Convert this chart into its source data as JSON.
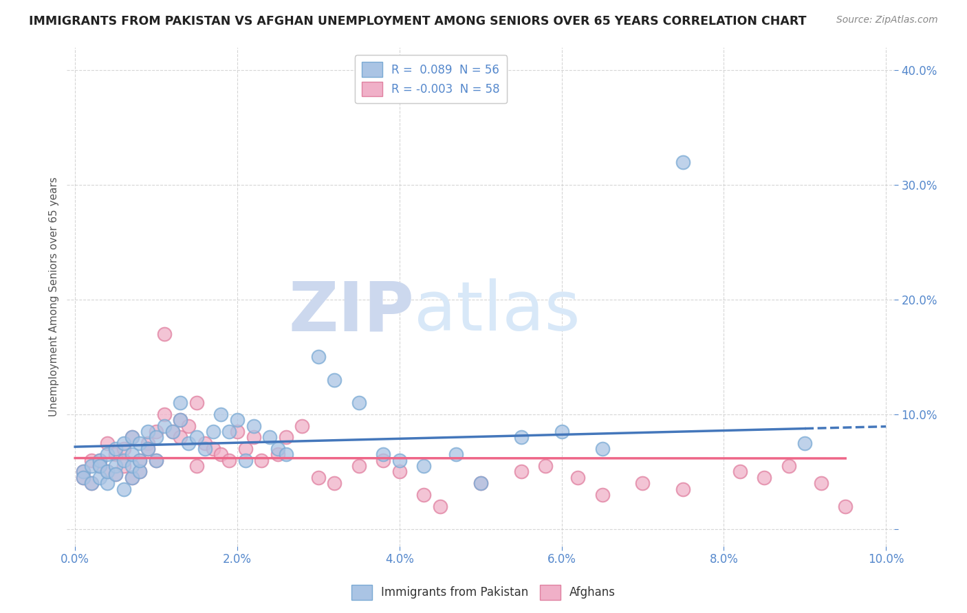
{
  "title": "IMMIGRANTS FROM PAKISTAN VS AFGHAN UNEMPLOYMENT AMONG SENIORS OVER 65 YEARS CORRELATION CHART",
  "source": "Source: ZipAtlas.com",
  "ylabel": "Unemployment Among Seniors over 65 years",
  "xlim": [
    -0.001,
    0.101
  ],
  "ylim": [
    -0.015,
    0.42
  ],
  "xticks": [
    0.0,
    0.02,
    0.04,
    0.06,
    0.08,
    0.1
  ],
  "xticklabels": [
    "0.0%",
    "2.0%",
    "4.0%",
    "6.0%",
    "8.0%",
    "10.0%"
  ],
  "yticks": [
    0.0,
    0.1,
    0.2,
    0.3,
    0.4
  ],
  "yticklabels": [
    "",
    "10.0%",
    "20.0%",
    "30.0%",
    "40.0%"
  ],
  "blue_scatter_color": "#aac4e4",
  "blue_scatter_edge": "#7aaad4",
  "pink_scatter_color": "#f0b0c8",
  "pink_scatter_edge": "#e080a0",
  "blue_line_color": "#4477bb",
  "pink_line_color": "#ee6688",
  "legend_blue_label": "R =  0.089  N = 56",
  "legend_pink_label": "R = -0.003  N = 58",
  "legend_blue_fill": "#aac4e4",
  "legend_pink_fill": "#f0b0c8",
  "R_blue": 0.089,
  "R_pink": -0.003,
  "pakistan_x": [
    0.001,
    0.001,
    0.002,
    0.002,
    0.003,
    0.003,
    0.003,
    0.004,
    0.004,
    0.004,
    0.005,
    0.005,
    0.005,
    0.006,
    0.006,
    0.006,
    0.007,
    0.007,
    0.007,
    0.007,
    0.008,
    0.008,
    0.008,
    0.009,
    0.009,
    0.01,
    0.01,
    0.011,
    0.012,
    0.013,
    0.013,
    0.014,
    0.015,
    0.016,
    0.017,
    0.018,
    0.019,
    0.02,
    0.021,
    0.022,
    0.024,
    0.025,
    0.026,
    0.03,
    0.032,
    0.035,
    0.038,
    0.04,
    0.043,
    0.047,
    0.05,
    0.055,
    0.06,
    0.065,
    0.075,
    0.09
  ],
  "pakistan_y": [
    0.05,
    0.045,
    0.055,
    0.04,
    0.045,
    0.06,
    0.055,
    0.04,
    0.065,
    0.05,
    0.055,
    0.07,
    0.048,
    0.035,
    0.06,
    0.075,
    0.08,
    0.045,
    0.055,
    0.065,
    0.05,
    0.075,
    0.06,
    0.07,
    0.085,
    0.06,
    0.08,
    0.09,
    0.085,
    0.095,
    0.11,
    0.075,
    0.08,
    0.07,
    0.085,
    0.1,
    0.085,
    0.095,
    0.06,
    0.09,
    0.08,
    0.07,
    0.065,
    0.15,
    0.13,
    0.11,
    0.065,
    0.06,
    0.055,
    0.065,
    0.04,
    0.08,
    0.085,
    0.07,
    0.32,
    0.075
  ],
  "afghan_x": [
    0.001,
    0.001,
    0.002,
    0.002,
    0.003,
    0.003,
    0.004,
    0.004,
    0.005,
    0.005,
    0.006,
    0.006,
    0.007,
    0.007,
    0.008,
    0.008,
    0.009,
    0.009,
    0.01,
    0.01,
    0.011,
    0.011,
    0.012,
    0.013,
    0.013,
    0.014,
    0.015,
    0.015,
    0.016,
    0.017,
    0.018,
    0.019,
    0.02,
    0.021,
    0.022,
    0.023,
    0.025,
    0.026,
    0.028,
    0.03,
    0.032,
    0.035,
    0.038,
    0.04,
    0.043,
    0.045,
    0.05,
    0.055,
    0.058,
    0.062,
    0.065,
    0.07,
    0.075,
    0.082,
    0.085,
    0.088,
    0.092,
    0.095
  ],
  "afghan_y": [
    0.05,
    0.045,
    0.06,
    0.04,
    0.055,
    0.06,
    0.075,
    0.05,
    0.065,
    0.048,
    0.07,
    0.055,
    0.08,
    0.045,
    0.06,
    0.05,
    0.075,
    0.07,
    0.085,
    0.06,
    0.1,
    0.17,
    0.085,
    0.095,
    0.08,
    0.09,
    0.11,
    0.055,
    0.075,
    0.07,
    0.065,
    0.06,
    0.085,
    0.07,
    0.08,
    0.06,
    0.065,
    0.08,
    0.09,
    0.045,
    0.04,
    0.055,
    0.06,
    0.05,
    0.03,
    0.02,
    0.04,
    0.05,
    0.055,
    0.045,
    0.03,
    0.04,
    0.035,
    0.05,
    0.045,
    0.055,
    0.04,
    0.02
  ],
  "watermark_zip": "ZIP",
  "watermark_atlas": "atlas",
  "tick_color": "#5588cc"
}
